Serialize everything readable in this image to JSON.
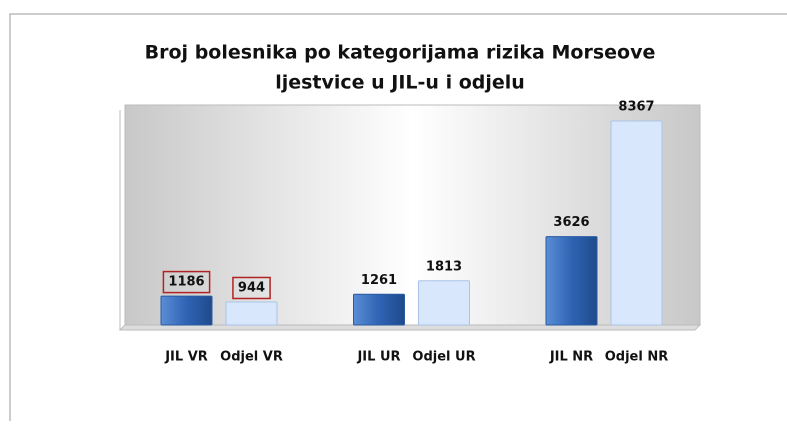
{
  "chart_data": {
    "type": "bar",
    "title": [
      "Broj bolesnika po kategorijama rizika Morseove",
      "ljestvice u JIL-u i odjelu"
    ],
    "categories": [
      "JIL VR",
      "Odjel VR",
      "JIL UR",
      "Odjel UR",
      "JIL NR",
      "Odjel NR"
    ],
    "values": [
      1186,
      944,
      1261,
      1813,
      3626,
      8367
    ],
    "colors": [
      "#3b72c2",
      "#d8e7fb",
      "#3b72c2",
      "#d8e7fb",
      "#3b72c2",
      "#d8e7fb"
    ],
    "highlighted": [
      0,
      1
    ],
    "highlight_color": "#b22222"
  }
}
